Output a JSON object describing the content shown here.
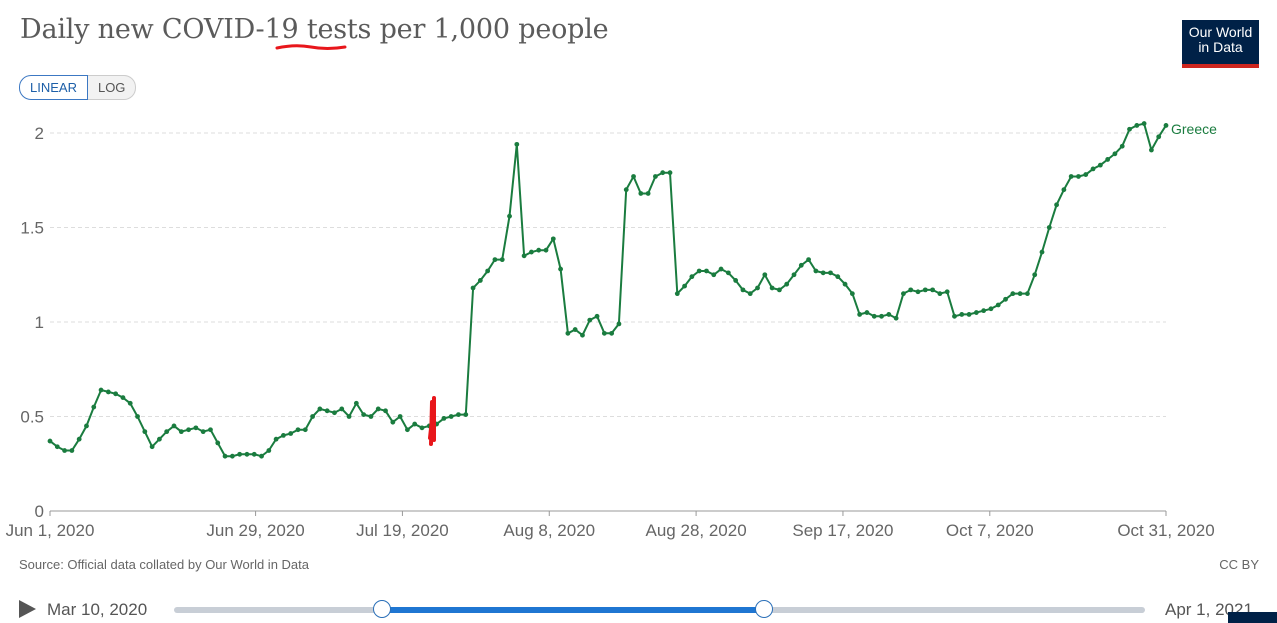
{
  "title": {
    "before": "Daily new COVID-19 ",
    "highlight": "tests",
    "after": " per 1,000 people"
  },
  "logo": {
    "line1": "Our World",
    "line2": "in Data"
  },
  "scale_toggle": {
    "linear": "LINEAR",
    "log": "LOG",
    "active": "LINEAR"
  },
  "footer": {
    "source": "Source: Official data collated by Our World in Data",
    "license": "CC BY"
  },
  "timeline": {
    "start_label": "Mar 10, 2020",
    "end_label": "Apr 1, 2021",
    "range_start_fraction": 0.214,
    "range_end_fraction": 0.608
  },
  "colors": {
    "series": "#1a7c3f",
    "grid": "#dddddd",
    "annotation": "#e8161b"
  },
  "chart_data": {
    "type": "line",
    "title": "Daily new COVID-19 tests per 1,000 people",
    "xlabel": "",
    "ylabel": "",
    "x_start": "2020-06-01",
    "x_end": "2020-10-31",
    "ylim": [
      0,
      2
    ],
    "yticks": [
      {
        "value": 0,
        "label": "0"
      },
      {
        "value": 0.5,
        "label": "0.5"
      },
      {
        "value": 1,
        "label": "1"
      },
      {
        "value": 1.5,
        "label": "1.5"
      },
      {
        "value": 2,
        "label": "2"
      }
    ],
    "xticks": [
      {
        "date": "2020-06-01",
        "label": "Jun 1, 2020"
      },
      {
        "date": "2020-06-29",
        "label": "Jun 29, 2020"
      },
      {
        "date": "2020-07-19",
        "label": "Jul 19, 2020"
      },
      {
        "date": "2020-08-08",
        "label": "Aug 8, 2020"
      },
      {
        "date": "2020-08-28",
        "label": "Aug 28, 2020"
      },
      {
        "date": "2020-09-17",
        "label": "Sep 17, 2020"
      },
      {
        "date": "2020-10-07",
        "label": "Oct 7, 2020"
      },
      {
        "date": "2020-10-31",
        "label": "Oct 31, 2020"
      }
    ],
    "grid": true,
    "legend": "inline-end-label",
    "series": [
      {
        "name": "Greece",
        "values": [
          0.37,
          0.34,
          0.32,
          0.32,
          0.38,
          0.45,
          0.55,
          0.64,
          0.63,
          0.62,
          0.6,
          0.57,
          0.5,
          0.42,
          0.34,
          0.38,
          0.42,
          0.45,
          0.42,
          0.43,
          0.44,
          0.42,
          0.43,
          0.36,
          0.29,
          0.29,
          0.3,
          0.3,
          0.3,
          0.29,
          0.32,
          0.38,
          0.4,
          0.41,
          0.43,
          0.43,
          0.5,
          0.54,
          0.53,
          0.52,
          0.54,
          0.5,
          0.57,
          0.51,
          0.5,
          0.54,
          0.53,
          0.47,
          0.5,
          0.43,
          0.46,
          0.44,
          0.45,
          0.46,
          0.49,
          0.5,
          0.51,
          0.51,
          1.18,
          1.22,
          1.27,
          1.33,
          1.33,
          1.56,
          1.94,
          1.35,
          1.37,
          1.38,
          1.38,
          1.44,
          1.28,
          0.94,
          0.96,
          0.93,
          1.01,
          1.03,
          0.94,
          0.94,
          0.99,
          1.7,
          1.77,
          1.68,
          1.68,
          1.77,
          1.79,
          1.79,
          1.15,
          1.19,
          1.24,
          1.27,
          1.27,
          1.25,
          1.28,
          1.26,
          1.22,
          1.17,
          1.15,
          1.18,
          1.25,
          1.18,
          1.17,
          1.2,
          1.25,
          1.3,
          1.33,
          1.27,
          1.26,
          1.26,
          1.24,
          1.2,
          1.15,
          1.04,
          1.05,
          1.03,
          1.03,
          1.04,
          1.02,
          1.15,
          1.17,
          1.16,
          1.17,
          1.17,
          1.15,
          1.16,
          1.03,
          1.04,
          1.04,
          1.05,
          1.06,
          1.07,
          1.09,
          1.12,
          1.15,
          1.15,
          1.15,
          1.25,
          1.37,
          1.5,
          1.62,
          1.7,
          1.77,
          1.77,
          1.78,
          1.81,
          1.83,
          1.86,
          1.89,
          1.93,
          2.02,
          2.04,
          2.05,
          1.91,
          1.98,
          2.04
        ]
      }
    ]
  }
}
